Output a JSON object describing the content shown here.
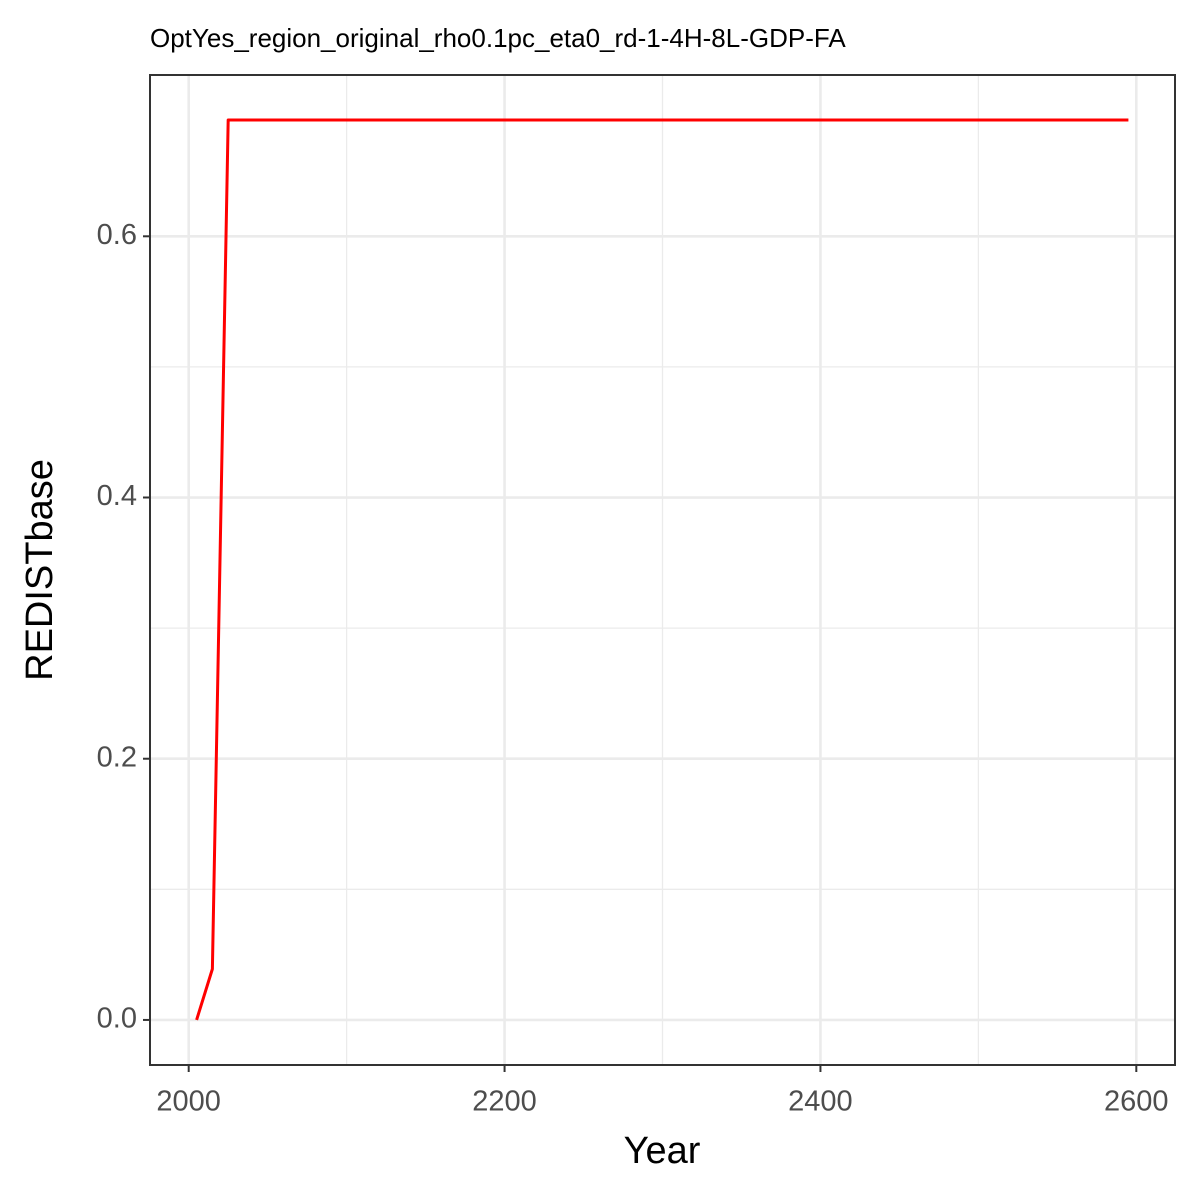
{
  "chart_data": {
    "type": "line",
    "title": "OptYes_region_original_rho0.1pc_eta0_rd-1-4H-8L-GDP-FA",
    "x_label": "Year",
    "y_label": "REDISTbase",
    "x": [
      2005,
      2015,
      2025,
      2595
    ],
    "series": [
      {
        "name": "REDISTbase",
        "color": "#ff0000",
        "values": [
          0,
          0.039,
          0.689,
          0.689
        ]
      }
    ],
    "xlim": [
      1975.5,
      2624.5
    ],
    "xticks": [
      2000,
      2200,
      2400,
      2600
    ],
    "xminor_ticks": [
      2100,
      2300,
      2500
    ],
    "ylim": [
      -0.0345,
      0.7235
    ],
    "yticks": [
      {
        "value": 0,
        "label": "0.0"
      },
      {
        "value": 0.2,
        "label": "0.2"
      },
      {
        "value": 0.4,
        "label": "0.4"
      },
      {
        "value": 0.6,
        "label": "0.6"
      }
    ],
    "yminor_ticks": [
      0.1,
      0.3,
      0.5
    ],
    "grid": true
  }
}
